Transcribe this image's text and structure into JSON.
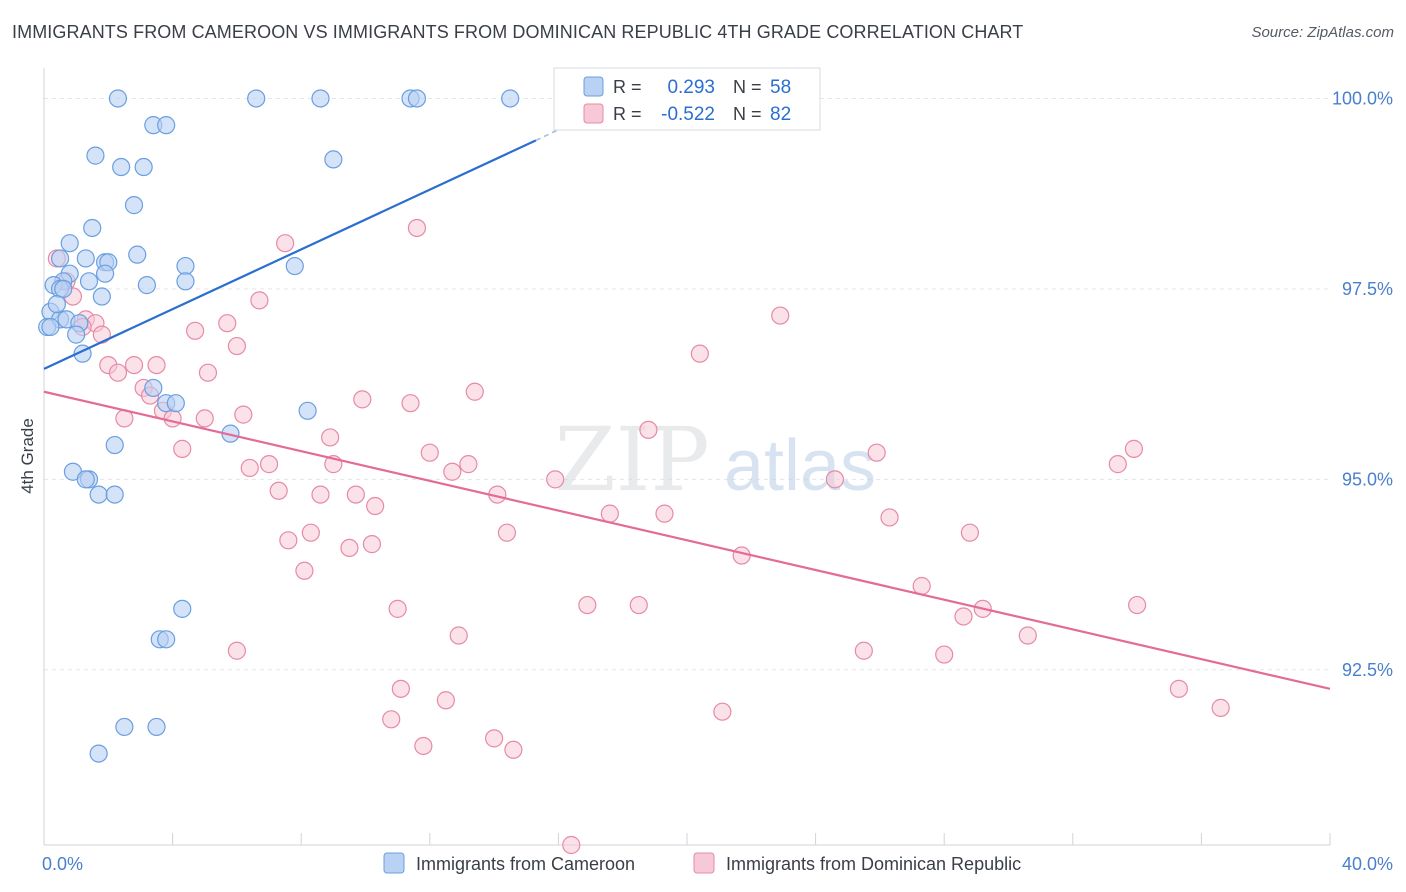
{
  "title": "IMMIGRANTS FROM CAMEROON VS IMMIGRANTS FROM DOMINICAN REPUBLIC 4TH GRADE CORRELATION CHART",
  "source": "Source: ZipAtlas.com",
  "watermark": {
    "zip": "ZIP",
    "atlas": "atlas"
  },
  "colors": {
    "blue": "#6a9fe0",
    "blue_fill": "#b9d1f3",
    "blue_line": "#2a6fcf",
    "pink": "#e68aa8",
    "pink_fill": "#f7c9d6",
    "pink_line": "#e46b95",
    "axis_text": "#4a7fcc",
    "grid": "#e3e6ea"
  },
  "chart_data": {
    "type": "scatter",
    "title": "IMMIGRANTS FROM CAMEROON VS IMMIGRANTS FROM DOMINICAN REPUBLIC 4TH GRADE CORRELATION CHART",
    "xlabel": "",
    "ylabel": "4th Grade",
    "xlim": [
      0,
      40
    ],
    "ylim": [
      90.2,
      100.4
    ],
    "x_tick_labels": [
      "0.0%",
      "40.0%"
    ],
    "y_ticks": [
      92.5,
      95.0,
      97.5,
      100.0
    ],
    "y_tick_labels": [
      "92.5%",
      "95.0%",
      "97.5%",
      "100.0%"
    ],
    "grid": true,
    "legend_position": "top-center",
    "series": [
      {
        "name": "Immigrants from Cameroon",
        "color": "#6a9fe0",
        "R": "0.293",
        "N": "58",
        "trend": {
          "x": [
            0.0,
            15.3
          ],
          "y": [
            96.45,
            99.45
          ]
        },
        "trend_dashed": {
          "x": [
            15.3,
            17.3
          ],
          "y": [
            99.45,
            99.85
          ]
        },
        "points": [
          [
            2.3,
            100.0
          ],
          [
            6.6,
            100.0
          ],
          [
            8.6,
            100.0
          ],
          [
            11.4,
            100.0
          ],
          [
            11.6,
            100.0
          ],
          [
            14.5,
            100.0
          ],
          [
            3.4,
            99.65
          ],
          [
            3.8,
            99.65
          ],
          [
            1.6,
            99.25
          ],
          [
            2.4,
            99.1
          ],
          [
            3.1,
            99.1
          ],
          [
            9.0,
            99.2
          ],
          [
            2.8,
            98.6
          ],
          [
            1.5,
            98.3
          ],
          [
            0.8,
            98.1
          ],
          [
            0.5,
            97.9
          ],
          [
            1.3,
            97.9
          ],
          [
            1.9,
            97.85
          ],
          [
            2.0,
            97.85
          ],
          [
            2.9,
            97.95
          ],
          [
            4.4,
            97.8
          ],
          [
            7.8,
            97.8
          ],
          [
            0.8,
            97.7
          ],
          [
            0.6,
            97.6
          ],
          [
            1.4,
            97.6
          ],
          [
            1.9,
            97.7
          ],
          [
            4.4,
            97.6
          ],
          [
            3.2,
            97.55
          ],
          [
            0.3,
            97.55
          ],
          [
            0.5,
            97.5
          ],
          [
            0.6,
            97.5
          ],
          [
            1.8,
            97.4
          ],
          [
            0.2,
            97.2
          ],
          [
            0.5,
            97.1
          ],
          [
            0.7,
            97.1
          ],
          [
            1.1,
            97.05
          ],
          [
            0.1,
            97.0
          ],
          [
            1.0,
            96.9
          ],
          [
            1.2,
            96.65
          ],
          [
            3.4,
            96.2
          ],
          [
            3.8,
            96.0
          ],
          [
            4.1,
            96.0
          ],
          [
            8.2,
            95.9
          ],
          [
            5.8,
            95.6
          ],
          [
            2.2,
            95.45
          ],
          [
            0.9,
            95.1
          ],
          [
            1.4,
            95.0
          ],
          [
            1.3,
            95.0
          ],
          [
            1.7,
            94.8
          ],
          [
            2.2,
            94.8
          ],
          [
            4.3,
            93.3
          ],
          [
            3.6,
            92.9
          ],
          [
            3.8,
            92.9
          ],
          [
            2.5,
            91.75
          ],
          [
            3.5,
            91.75
          ],
          [
            1.7,
            91.4
          ],
          [
            0.4,
            97.3
          ],
          [
            0.2,
            97.0
          ]
        ]
      },
      {
        "name": "Immigrants from Dominican Republic",
        "color": "#e68aa8",
        "R": "-0.522",
        "N": "82",
        "trend": {
          "x": [
            0.0,
            40.0
          ],
          "y": [
            96.15,
            92.25
          ]
        },
        "points": [
          [
            0.4,
            97.9
          ],
          [
            0.7,
            97.6
          ],
          [
            0.9,
            97.4
          ],
          [
            1.3,
            97.1
          ],
          [
            1.6,
            97.05
          ],
          [
            1.8,
            96.9
          ],
          [
            1.2,
            97.0
          ],
          [
            2.0,
            96.5
          ],
          [
            2.3,
            96.4
          ],
          [
            2.8,
            96.5
          ],
          [
            3.5,
            96.5
          ],
          [
            3.1,
            96.2
          ],
          [
            3.3,
            96.1
          ],
          [
            2.5,
            95.8
          ],
          [
            3.7,
            95.9
          ],
          [
            4.0,
            95.8
          ],
          [
            4.3,
            95.4
          ],
          [
            4.7,
            96.95
          ],
          [
            5.0,
            95.8
          ],
          [
            5.1,
            96.4
          ],
          [
            5.7,
            97.05
          ],
          [
            6.0,
            96.75
          ],
          [
            6.2,
            95.85
          ],
          [
            6.4,
            95.15
          ],
          [
            6.7,
            97.35
          ],
          [
            7.0,
            95.2
          ],
          [
            7.3,
            94.85
          ],
          [
            7.6,
            94.2
          ],
          [
            7.5,
            98.1
          ],
          [
            8.3,
            94.3
          ],
          [
            8.1,
            93.8
          ],
          [
            8.6,
            94.8
          ],
          [
            8.9,
            95.55
          ],
          [
            9.0,
            95.2
          ],
          [
            9.5,
            94.1
          ],
          [
            9.7,
            94.8
          ],
          [
            9.9,
            96.05
          ],
          [
            10.2,
            94.15
          ],
          [
            10.3,
            94.65
          ],
          [
            11.0,
            93.3
          ],
          [
            11.1,
            92.25
          ],
          [
            11.4,
            96.0
          ],
          [
            11.6,
            98.3
          ],
          [
            12.0,
            95.35
          ],
          [
            12.5,
            92.1
          ],
          [
            12.7,
            95.1
          ],
          [
            12.9,
            92.95
          ],
          [
            13.2,
            95.2
          ],
          [
            13.4,
            96.15
          ],
          [
            14.0,
            91.6
          ],
          [
            14.1,
            94.8
          ],
          [
            14.4,
            94.3
          ],
          [
            14.6,
            91.45
          ],
          [
            15.9,
            95.0
          ],
          [
            16.4,
            90.2
          ],
          [
            16.9,
            93.35
          ],
          [
            17.6,
            94.55
          ],
          [
            18.5,
            93.35
          ],
          [
            18.8,
            95.65
          ],
          [
            19.3,
            94.55
          ],
          [
            20.4,
            96.65
          ],
          [
            21.1,
            91.95
          ],
          [
            21.7,
            94.0
          ],
          [
            22.9,
            97.15
          ],
          [
            24.6,
            95.0
          ],
          [
            25.5,
            92.75
          ],
          [
            25.9,
            95.35
          ],
          [
            26.3,
            94.5
          ],
          [
            27.3,
            93.6
          ],
          [
            28.0,
            92.7
          ],
          [
            28.6,
            93.2
          ],
          [
            28.8,
            94.3
          ],
          [
            29.2,
            93.3
          ],
          [
            30.6,
            92.95
          ],
          [
            33.4,
            95.2
          ],
          [
            33.9,
            95.4
          ],
          [
            34.0,
            93.35
          ],
          [
            35.3,
            92.25
          ],
          [
            36.6,
            92.0
          ],
          [
            11.8,
            91.5
          ],
          [
            10.8,
            91.85
          ],
          [
            6.0,
            92.75
          ]
        ]
      }
    ]
  },
  "legend_box": {
    "rows": [
      {
        "r_label": "R =",
        "r_value": "0.293",
        "n_label": "N =",
        "n_value": "58"
      },
      {
        "r_label": "R =",
        "r_value": "-0.522",
        "n_label": "N =",
        "n_value": "82"
      }
    ]
  },
  "bottom_legend": {
    "items": [
      "Immigrants from Cameroon",
      "Immigrants from Dominican Republic"
    ]
  }
}
